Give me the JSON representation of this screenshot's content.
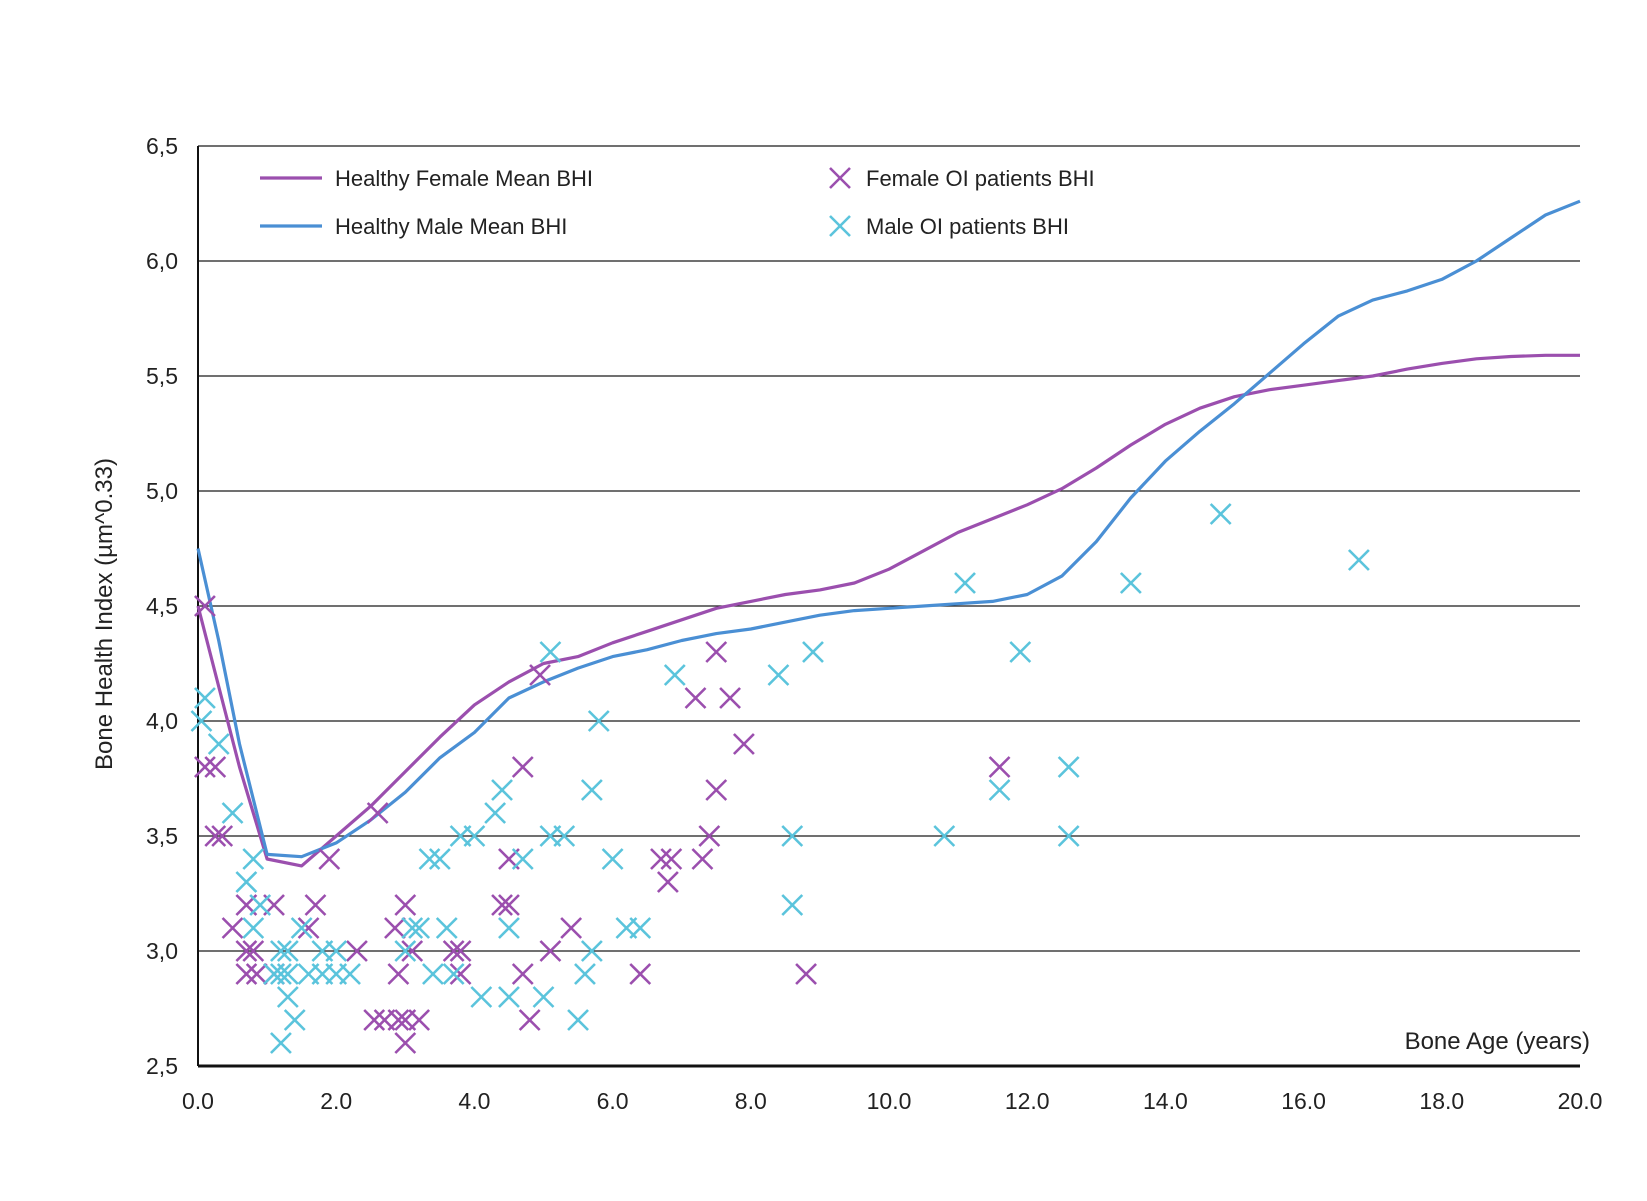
{
  "chart_data": {
    "type": "scatter",
    "title": "",
    "xlabel": "Bone Age (years)",
    "ylabel": "Bone Health Index (µm^0.33)",
    "xlim": [
      0,
      20
    ],
    "ylim": [
      2.5,
      6.5
    ],
    "x_ticks": [
      "0.0",
      "2.0",
      "4.0",
      "6.0",
      "8.0",
      "10.0",
      "12.0",
      "14.0",
      "16.0",
      "18.0",
      "20.0"
    ],
    "y_ticks": [
      "2,5",
      "3,0",
      "3,5",
      "4,0",
      "4,5",
      "5,0",
      "5,5",
      "6,0",
      "6,5"
    ],
    "grid": "horizontal",
    "legend_position": "top",
    "colors": {
      "female": "#9b4fae",
      "male": "#5bc4dc",
      "female_line": "#9b4fae",
      "male_line": "#4a8fd4"
    },
    "lines": [
      {
        "name": "Healthy Female Mean BHI",
        "color": "#9b4fae",
        "x": [
          0,
          0.3,
          0.6,
          1.0,
          1.5,
          2.0,
          2.5,
          3.0,
          3.5,
          4.0,
          4.5,
          5.0,
          5.5,
          6.0,
          6.5,
          7.0,
          7.5,
          8.0,
          8.5,
          9.0,
          9.5,
          10.0,
          10.5,
          11.0,
          11.5,
          12.0,
          12.5,
          13.0,
          13.5,
          14.0,
          14.5,
          15.0,
          15.5,
          16.0,
          16.5,
          17.0,
          17.5,
          18.0,
          18.5,
          19.0,
          19.5,
          20.0
        ],
        "y": [
          4.5,
          4.15,
          3.8,
          3.4,
          3.37,
          3.5,
          3.63,
          3.78,
          3.93,
          4.07,
          4.17,
          4.25,
          4.28,
          4.34,
          4.39,
          4.44,
          4.49,
          4.52,
          4.55,
          4.57,
          4.6,
          4.66,
          4.74,
          4.82,
          4.88,
          4.94,
          5.01,
          5.1,
          5.2,
          5.29,
          5.36,
          5.41,
          5.44,
          5.46,
          5.48,
          5.5,
          5.53,
          5.555,
          5.575,
          5.585,
          5.59,
          5.59
        ]
      },
      {
        "name": "Healthy Male Mean BHI",
        "color": "#4a8fd4",
        "x": [
          0,
          0.3,
          0.6,
          1.0,
          1.5,
          2.0,
          2.5,
          3.0,
          3.5,
          4.0,
          4.5,
          5.0,
          5.5,
          6.0,
          6.5,
          7.0,
          7.5,
          8.0,
          8.5,
          9.0,
          9.5,
          10.0,
          10.5,
          11.0,
          11.5,
          12.0,
          12.5,
          13.0,
          13.5,
          14.0,
          14.5,
          15.0,
          15.5,
          16.0,
          16.5,
          17.0,
          17.5,
          18.0,
          18.5,
          19.0,
          19.5,
          20.0
        ],
        "y": [
          4.75,
          4.35,
          3.9,
          3.42,
          3.41,
          3.47,
          3.57,
          3.69,
          3.84,
          3.95,
          4.1,
          4.17,
          4.23,
          4.28,
          4.31,
          4.35,
          4.38,
          4.4,
          4.43,
          4.46,
          4.48,
          4.49,
          4.5,
          4.51,
          4.52,
          4.55,
          4.63,
          4.78,
          4.97,
          5.13,
          5.26,
          5.38,
          5.51,
          5.64,
          5.76,
          5.83,
          5.87,
          5.92,
          6.0,
          6.1,
          6.2,
          6.26
        ]
      }
    ],
    "series": [
      {
        "name": "Female OI patients BHI",
        "color": "#9b4fae",
        "points": [
          [
            0.1,
            4.5
          ],
          [
            0.1,
            3.8
          ],
          [
            0.25,
            3.8
          ],
          [
            0.25,
            3.5
          ],
          [
            0.35,
            3.5
          ],
          [
            0.5,
            3.1
          ],
          [
            0.7,
            3.2
          ],
          [
            0.7,
            3.0
          ],
          [
            0.8,
            3.0
          ],
          [
            0.7,
            2.9
          ],
          [
            0.85,
            2.9
          ],
          [
            1.1,
            3.2
          ],
          [
            1.1,
            2.9
          ],
          [
            1.6,
            3.1
          ],
          [
            1.7,
            3.2
          ],
          [
            1.9,
            3.4
          ],
          [
            2.3,
            3.0
          ],
          [
            2.6,
            3.6
          ],
          [
            2.55,
            2.7
          ],
          [
            2.7,
            2.7
          ],
          [
            2.85,
            3.1
          ],
          [
            2.9,
            2.7
          ],
          [
            2.9,
            2.9
          ],
          [
            3.0,
            3.2
          ],
          [
            3.0,
            2.7
          ],
          [
            3.1,
            3.0
          ],
          [
            3.2,
            2.7
          ],
          [
            3.0,
            2.6
          ],
          [
            3.7,
            3.0
          ],
          [
            3.8,
            3.0
          ],
          [
            3.8,
            2.9
          ],
          [
            4.4,
            3.2
          ],
          [
            4.5,
            3.2
          ],
          [
            4.5,
            3.4
          ],
          [
            4.7,
            3.8
          ],
          [
            4.7,
            2.9
          ],
          [
            4.8,
            2.7
          ],
          [
            4.95,
            4.2
          ],
          [
            5.1,
            3.0
          ],
          [
            5.4,
            3.1
          ],
          [
            6.4,
            2.9
          ],
          [
            6.7,
            3.4
          ],
          [
            6.8,
            3.3
          ],
          [
            6.85,
            3.4
          ],
          [
            7.2,
            4.1
          ],
          [
            7.3,
            3.4
          ],
          [
            7.4,
            3.5
          ],
          [
            7.5,
            4.3
          ],
          [
            7.5,
            3.7
          ],
          [
            7.7,
            4.1
          ],
          [
            7.9,
            3.9
          ],
          [
            8.8,
            2.9
          ],
          [
            11.6,
            3.8
          ]
        ]
      },
      {
        "name": "Male OI patients BHI",
        "color": "#5bc4dc",
        "points": [
          [
            0.05,
            4.0
          ],
          [
            0.1,
            4.1
          ],
          [
            0.3,
            3.9
          ],
          [
            0.5,
            3.6
          ],
          [
            0.7,
            3.3
          ],
          [
            0.8,
            3.4
          ],
          [
            0.8,
            3.1
          ],
          [
            0.9,
            3.2
          ],
          [
            1.1,
            2.9
          ],
          [
            1.2,
            2.9
          ],
          [
            1.2,
            3.0
          ],
          [
            1.3,
            2.9
          ],
          [
            1.3,
            3.0
          ],
          [
            1.3,
            2.8
          ],
          [
            1.2,
            2.6
          ],
          [
            1.4,
            2.7
          ],
          [
            1.5,
            3.1
          ],
          [
            1.6,
            2.9
          ],
          [
            1.8,
            3.0
          ],
          [
            1.8,
            2.9
          ],
          [
            2.0,
            2.9
          ],
          [
            2.0,
            3.0
          ],
          [
            2.2,
            2.9
          ],
          [
            3.0,
            3.0
          ],
          [
            3.1,
            3.1
          ],
          [
            3.2,
            3.1
          ],
          [
            3.35,
            3.4
          ],
          [
            3.4,
            2.9
          ],
          [
            3.5,
            3.4
          ],
          [
            3.6,
            3.1
          ],
          [
            3.7,
            2.9
          ],
          [
            3.8,
            3.5
          ],
          [
            4.0,
            3.5
          ],
          [
            4.1,
            2.8
          ],
          [
            4.3,
            3.6
          ],
          [
            4.4,
            3.7
          ],
          [
            4.5,
            3.1
          ],
          [
            4.5,
            2.8
          ],
          [
            4.7,
            3.4
          ],
          [
            5.0,
            2.8
          ],
          [
            5.1,
            4.3
          ],
          [
            5.1,
            3.5
          ],
          [
            5.3,
            3.5
          ],
          [
            5.5,
            2.7
          ],
          [
            5.6,
            2.9
          ],
          [
            5.7,
            3.7
          ],
          [
            5.7,
            3.0
          ],
          [
            5.8,
            4.0
          ],
          [
            6.0,
            3.4
          ],
          [
            6.2,
            3.1
          ],
          [
            6.4,
            3.1
          ],
          [
            6.9,
            4.2
          ],
          [
            8.4,
            4.2
          ],
          [
            8.6,
            3.5
          ],
          [
            8.6,
            3.2
          ],
          [
            8.9,
            4.3
          ],
          [
            10.8,
            3.5
          ],
          [
            11.1,
            4.6
          ],
          [
            11.6,
            3.7
          ],
          [
            11.9,
            4.3
          ],
          [
            12.6,
            3.8
          ],
          [
            12.6,
            3.5
          ],
          [
            13.5,
            4.6
          ],
          [
            14.8,
            4.9
          ],
          [
            16.8,
            4.7
          ]
        ]
      }
    ]
  }
}
